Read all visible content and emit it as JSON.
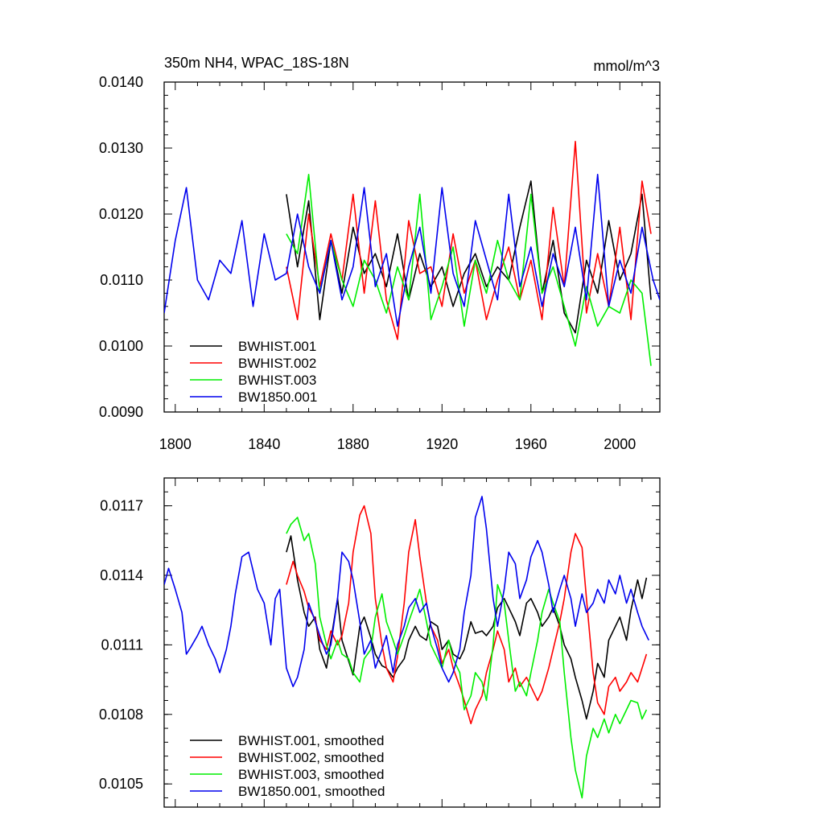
{
  "chart_data": [
    {
      "type": "line",
      "title": "350m NH4, WPAC_18S-18N",
      "units": "mmol/m^3",
      "xlim": [
        1795,
        2018
      ],
      "ylim": [
        0.009,
        0.014
      ],
      "x_ticks": [
        1800,
        1840,
        1880,
        1920,
        1960,
        2000
      ],
      "y_ticks": [
        0.009,
        0.01,
        0.011,
        0.012,
        0.013,
        0.014
      ],
      "y_tick_labels": [
        "0.0090",
        "0.0100",
        "0.0110",
        "0.0120",
        "0.0130",
        "0.0140"
      ],
      "legend_position": "bottom-left",
      "series": [
        {
          "name": "BWHIST.001",
          "color": "#000000",
          "x": [
            1850,
            1855,
            1860,
            1865,
            1870,
            1875,
            1880,
            1885,
            1890,
            1895,
            1900,
            1905,
            1910,
            1915,
            1920,
            1925,
            1930,
            1935,
            1940,
            1945,
            1950,
            1955,
            1960,
            1965,
            1970,
            1975,
            1980,
            1985,
            1990,
            1995,
            2000,
            2005,
            2010,
            2014
          ],
          "values": [
            0.0123,
            0.0112,
            0.0122,
            0.0104,
            0.0116,
            0.0108,
            0.0118,
            0.0111,
            0.0114,
            0.0109,
            0.0117,
            0.0107,
            0.0114,
            0.0109,
            0.0112,
            0.0106,
            0.0111,
            0.0114,
            0.0109,
            0.0112,
            0.011,
            0.0118,
            0.0125,
            0.0108,
            0.0116,
            0.0105,
            0.0102,
            0.0113,
            0.0108,
            0.0119,
            0.011,
            0.0114,
            0.0123,
            0.0107
          ]
        },
        {
          "name": "BWHIST.002",
          "color": "#ff0000",
          "x": [
            1850,
            1855,
            1860,
            1865,
            1870,
            1875,
            1880,
            1885,
            1890,
            1895,
            1900,
            1905,
            1910,
            1915,
            1920,
            1925,
            1930,
            1935,
            1940,
            1945,
            1950,
            1955,
            1960,
            1965,
            1970,
            1975,
            1980,
            1985,
            1990,
            1995,
            2000,
            2005,
            2010,
            2014
          ],
          "values": [
            0.0112,
            0.0104,
            0.012,
            0.0109,
            0.0117,
            0.011,
            0.0123,
            0.0108,
            0.0122,
            0.0107,
            0.0101,
            0.0119,
            0.0111,
            0.0112,
            0.0106,
            0.0117,
            0.0108,
            0.0113,
            0.0104,
            0.011,
            0.0115,
            0.0107,
            0.0113,
            0.0104,
            0.0121,
            0.0109,
            0.0131,
            0.0105,
            0.0114,
            0.0106,
            0.0118,
            0.0104,
            0.0125,
            0.0117
          ]
        },
        {
          "name": "BWHIST.003",
          "color": "#00ee00",
          "x": [
            1850,
            1855,
            1860,
            1865,
            1870,
            1875,
            1880,
            1885,
            1890,
            1895,
            1900,
            1905,
            1910,
            1915,
            1920,
            1925,
            1930,
            1935,
            1940,
            1945,
            1950,
            1955,
            1960,
            1965,
            1970,
            1975,
            1980,
            1985,
            1990,
            1995,
            2000,
            2005,
            2010,
            2014
          ],
          "values": [
            0.0117,
            0.0114,
            0.0126,
            0.0108,
            0.0116,
            0.011,
            0.0106,
            0.0113,
            0.011,
            0.0105,
            0.0112,
            0.0107,
            0.0123,
            0.0104,
            0.0109,
            0.0115,
            0.0103,
            0.0113,
            0.0108,
            0.0116,
            0.011,
            0.0107,
            0.0123,
            0.0108,
            0.0112,
            0.0106,
            0.01,
            0.0109,
            0.0103,
            0.0106,
            0.0105,
            0.011,
            0.0108,
            0.0097
          ]
        },
        {
          "name": "BW1850.001",
          "color": "#0000ee",
          "x": [
            1795,
            1800,
            1805,
            1810,
            1815,
            1820,
            1825,
            1830,
            1835,
            1840,
            1845,
            1850,
            1855,
            1860,
            1865,
            1870,
            1875,
            1880,
            1885,
            1890,
            1895,
            1900,
            1905,
            1910,
            1915,
            1920,
            1925,
            1930,
            1935,
            1940,
            1945,
            1950,
            1955,
            1960,
            1965,
            1970,
            1975,
            1980,
            1985,
            1990,
            1995,
            2000,
            2005,
            2010,
            2015,
            2018
          ],
          "values": [
            0.0105,
            0.0116,
            0.0124,
            0.011,
            0.0107,
            0.0113,
            0.0111,
            0.0119,
            0.0106,
            0.0117,
            0.011,
            0.0111,
            0.012,
            0.0112,
            0.0108,
            0.0116,
            0.0107,
            0.0112,
            0.0124,
            0.0109,
            0.0114,
            0.0103,
            0.0112,
            0.0118,
            0.0108,
            0.0124,
            0.0111,
            0.0106,
            0.0119,
            0.0113,
            0.0107,
            0.0123,
            0.0109,
            0.0115,
            0.0106,
            0.0114,
            0.0109,
            0.0118,
            0.0107,
            0.0126,
            0.0106,
            0.0113,
            0.0108,
            0.0118,
            0.011,
            0.0107
          ]
        }
      ]
    },
    {
      "type": "line",
      "title": "",
      "xlim": [
        1795,
        2018
      ],
      "ylim": [
        0.0104,
        0.01182
      ],
      "x_ticks": [
        1800,
        1840,
        1880,
        1920,
        1960,
        2000
      ],
      "y_ticks": [
        0.0105,
        0.0108,
        0.0111,
        0.0114,
        0.0117
      ],
      "y_tick_labels": [
        "0.0105",
        "0.0108",
        "0.0111",
        "0.0114",
        "0.0117"
      ],
      "legend_position": "bottom-left",
      "series": [
        {
          "name": "BWHIST.001, smoothed",
          "color": "#000000",
          "x": [
            1850,
            1852,
            1855,
            1858,
            1860,
            1863,
            1865,
            1868,
            1870,
            1873,
            1875,
            1878,
            1880,
            1883,
            1885,
            1888,
            1890,
            1893,
            1895,
            1898,
            1900,
            1903,
            1905,
            1908,
            1910,
            1913,
            1915,
            1918,
            1920,
            1923,
            1925,
            1928,
            1930,
            1933,
            1935,
            1938,
            1940,
            1943,
            1945,
            1948,
            1950,
            1953,
            1955,
            1958,
            1960,
            1963,
            1965,
            1968,
            1970,
            1973,
            1975,
            1978,
            1980,
            1983,
            1985,
            1988,
            1990,
            1993,
            1995,
            1998,
            2000,
            2003,
            2005,
            2008,
            2010,
            2012
          ],
          "values": [
            0.0115,
            0.01157,
            0.01138,
            0.01124,
            0.01118,
            0.01122,
            0.01108,
            0.011,
            0.01112,
            0.0113,
            0.01112,
            0.01103,
            0.01097,
            0.01118,
            0.01122,
            0.01113,
            0.01106,
            0.01101,
            0.011,
            0.01096,
            0.011,
            0.01104,
            0.01112,
            0.01118,
            0.01114,
            0.01112,
            0.0112,
            0.01118,
            0.01108,
            0.01112,
            0.01106,
            0.01104,
            0.01108,
            0.0112,
            0.01115,
            0.01116,
            0.01114,
            0.01118,
            0.01126,
            0.0113,
            0.01126,
            0.0112,
            0.01114,
            0.01128,
            0.0113,
            0.01124,
            0.01118,
            0.01122,
            0.01126,
            0.01118,
            0.0111,
            0.01104,
            0.01096,
            0.01086,
            0.01078,
            0.0109,
            0.01102,
            0.01096,
            0.01112,
            0.01118,
            0.01122,
            0.01112,
            0.01125,
            0.01138,
            0.0113,
            0.01139
          ]
        },
        {
          "name": "BWHIST.002, smoothed",
          "color": "#ff0000",
          "x": [
            1850,
            1853,
            1855,
            1858,
            1860,
            1863,
            1865,
            1868,
            1870,
            1873,
            1875,
            1878,
            1880,
            1883,
            1885,
            1888,
            1890,
            1893,
            1895,
            1898,
            1900,
            1903,
            1905,
            1908,
            1910,
            1913,
            1915,
            1918,
            1920,
            1923,
            1925,
            1928,
            1930,
            1933,
            1935,
            1938,
            1940,
            1943,
            1945,
            1948,
            1950,
            1953,
            1955,
            1958,
            1960,
            1963,
            1965,
            1968,
            1970,
            1973,
            1975,
            1978,
            1980,
            1983,
            1985,
            1988,
            1990,
            1993,
            1995,
            1998,
            2000,
            2003,
            2005,
            2008,
            2010,
            2012
          ],
          "values": [
            0.01136,
            0.01146,
            0.0114,
            0.01133,
            0.01126,
            0.01121,
            0.01112,
            0.01108,
            0.01116,
            0.0111,
            0.01114,
            0.01128,
            0.0115,
            0.01166,
            0.0117,
            0.01158,
            0.0113,
            0.0111,
            0.011,
            0.01094,
            0.01105,
            0.01128,
            0.0115,
            0.01164,
            0.01148,
            0.01128,
            0.01118,
            0.01112,
            0.01102,
            0.01108,
            0.011,
            0.01092,
            0.01086,
            0.01076,
            0.01082,
            0.01088,
            0.01098,
            0.01108,
            0.01116,
            0.01108,
            0.01094,
            0.011,
            0.01092,
            0.01096,
            0.01092,
            0.01086,
            0.0109,
            0.011,
            0.01108,
            0.0112,
            0.0113,
            0.0115,
            0.01158,
            0.01152,
            0.0113,
            0.01098,
            0.01085,
            0.0108,
            0.01092,
            0.01096,
            0.0109,
            0.01094,
            0.01098,
            0.01094,
            0.011,
            0.01106
          ]
        },
        {
          "name": "BWHIST.003, smoothed",
          "color": "#00ee00",
          "x": [
            1850,
            1852,
            1855,
            1858,
            1860,
            1863,
            1865,
            1868,
            1870,
            1873,
            1875,
            1878,
            1880,
            1883,
            1885,
            1888,
            1890,
            1893,
            1895,
            1898,
            1900,
            1903,
            1905,
            1908,
            1910,
            1913,
            1915,
            1918,
            1920,
            1923,
            1925,
            1928,
            1930,
            1933,
            1935,
            1938,
            1940,
            1943,
            1945,
            1948,
            1950,
            1953,
            1955,
            1958,
            1960,
            1963,
            1965,
            1968,
            1970,
            1973,
            1975,
            1978,
            1980,
            1983,
            1985,
            1988,
            1990,
            1993,
            1995,
            1998,
            2000,
            2003,
            2005,
            2008,
            2010,
            2012
          ],
          "values": [
            0.01158,
            0.01162,
            0.01165,
            0.01155,
            0.01158,
            0.01145,
            0.01122,
            0.0111,
            0.01104,
            0.01112,
            0.01106,
            0.01104,
            0.01098,
            0.01094,
            0.01104,
            0.01108,
            0.01122,
            0.01132,
            0.0112,
            0.01112,
            0.01106,
            0.01114,
            0.0112,
            0.01128,
            0.01134,
            0.0112,
            0.0111,
            0.01104,
            0.011,
            0.01112,
            0.01104,
            0.01098,
            0.01082,
            0.01088,
            0.01098,
            0.01094,
            0.01086,
            0.0111,
            0.01136,
            0.01128,
            0.01112,
            0.0109,
            0.01094,
            0.01088,
            0.01098,
            0.01112,
            0.01124,
            0.01134,
            0.01128,
            0.0112,
            0.01098,
            0.0107,
            0.01056,
            0.01044,
            0.01062,
            0.01074,
            0.0107,
            0.01078,
            0.01072,
            0.0108,
            0.01076,
            0.01082,
            0.01086,
            0.01085,
            0.01078,
            0.01082
          ]
        },
        {
          "name": "BW1850.001, smoothed",
          "color": "#0000ee",
          "x": [
            1795,
            1797,
            1800,
            1803,
            1805,
            1807,
            1810,
            1812,
            1815,
            1818,
            1820,
            1823,
            1825,
            1827,
            1830,
            1833,
            1835,
            1837,
            1840,
            1843,
            1845,
            1847,
            1850,
            1853,
            1855,
            1858,
            1860,
            1863,
            1865,
            1868,
            1870,
            1873,
            1875,
            1878,
            1880,
            1883,
            1885,
            1888,
            1890,
            1893,
            1895,
            1898,
            1900,
            1903,
            1905,
            1908,
            1910,
            1913,
            1915,
            1918,
            1920,
            1923,
            1925,
            1928,
            1930,
            1933,
            1935,
            1938,
            1940,
            1943,
            1945,
            1948,
            1950,
            1953,
            1955,
            1958,
            1960,
            1963,
            1965,
            1968,
            1970,
            1973,
            1975,
            1978,
            1980,
            1983,
            1985,
            1988,
            1990,
            1993,
            1995,
            1998,
            2000,
            2003,
            2005,
            2008,
            2010,
            2013
          ],
          "values": [
            0.01136,
            0.01143,
            0.01134,
            0.01124,
            0.01106,
            0.01109,
            0.01114,
            0.01118,
            0.0111,
            0.01104,
            0.01098,
            0.01108,
            0.01118,
            0.01132,
            0.01148,
            0.0115,
            0.01142,
            0.01134,
            0.01128,
            0.0111,
            0.0113,
            0.01134,
            0.011,
            0.01092,
            0.01096,
            0.01108,
            0.01128,
            0.0112,
            0.01114,
            0.01106,
            0.0111,
            0.0113,
            0.0115,
            0.01146,
            0.01138,
            0.0112,
            0.01106,
            0.01112,
            0.011,
            0.01108,
            0.01114,
            0.01098,
            0.0111,
            0.01118,
            0.01126,
            0.0113,
            0.01124,
            0.01128,
            0.01118,
            0.01108,
            0.011,
            0.01094,
            0.01098,
            0.01108,
            0.01124,
            0.0114,
            0.01165,
            0.01174,
            0.0116,
            0.0113,
            0.01118,
            0.01134,
            0.0115,
            0.01145,
            0.0113,
            0.01138,
            0.01148,
            0.01155,
            0.0115,
            0.01136,
            0.01124,
            0.01134,
            0.0114,
            0.0113,
            0.01118,
            0.01132,
            0.01124,
            0.01128,
            0.01134,
            0.01128,
            0.01138,
            0.01132,
            0.0114,
            0.01128,
            0.01134,
            0.01124,
            0.01118,
            0.01112
          ]
        }
      ]
    }
  ]
}
